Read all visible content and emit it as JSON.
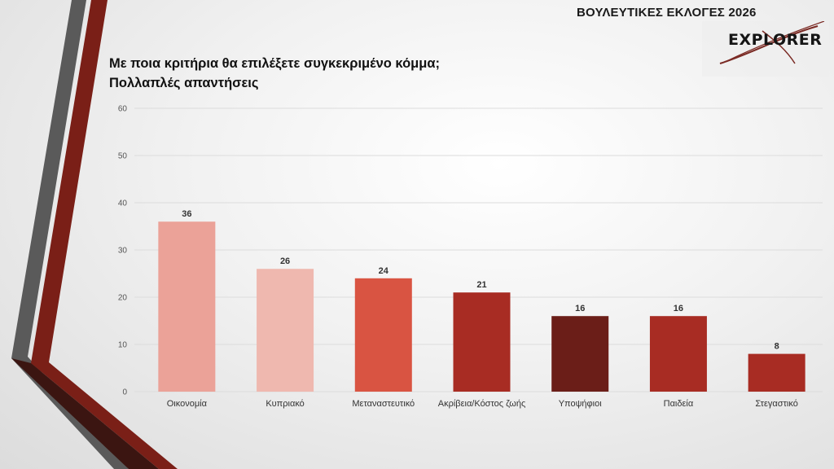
{
  "header": {
    "title": "ΒΟΥΛΕΥΤΙΚΕΣ ΕΚΛΟΓΕΣ 2026",
    "logo_text": "EXPLORER"
  },
  "question": {
    "line1": "Με ποια κριτήρια θα επιλέξετε συγκεκριμένο κόμμα;",
    "line2": "Πολλαπλές απαντήσεις"
  },
  "chart_data": {
    "type": "bar",
    "title": "Με ποια κριτήρια θα επιλέξετε συγκεκριμένο κόμμα; Πολλαπλές απαντήσεις",
    "categories": [
      "Οικονομία",
      "Κυπριακό",
      "Μεταναστευτικό",
      "Ακρίβεια/Κόστος ζωής",
      "Υποψήφιοι",
      "Παιδεία",
      "Στεγαστικό"
    ],
    "values": [
      36,
      26,
      24,
      21,
      16,
      16,
      8
    ],
    "colors": [
      "#EBA298",
      "#EFB8AF",
      "#D95442",
      "#A82C23",
      "#6B1E18",
      "#A82C23",
      "#A82C23"
    ],
    "ylim": [
      0,
      60
    ],
    "yticks": [
      0,
      10,
      20,
      30,
      40,
      50,
      60
    ],
    "xlabel": "",
    "ylabel": "",
    "grid": true,
    "data_labels": true
  },
  "theme": {
    "decor_gray": "#595959",
    "decor_red": "#7A1F17",
    "decor_dark": "#3A1210"
  }
}
